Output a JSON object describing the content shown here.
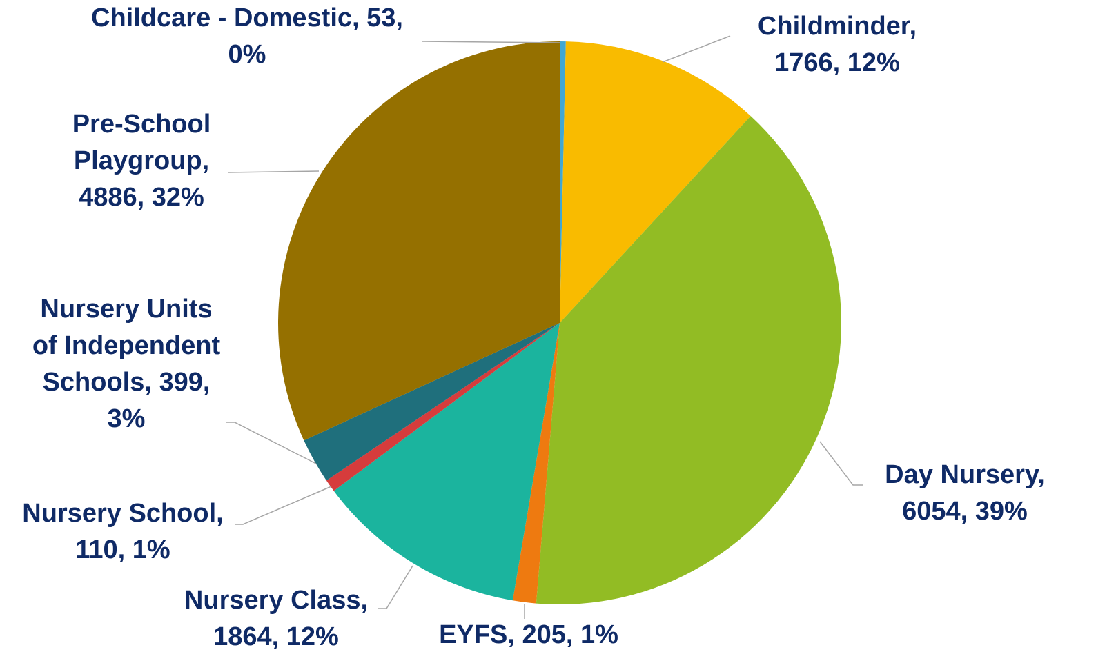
{
  "chart_data": {
    "type": "pie",
    "categories": [
      "Childcare - Domestic",
      "Childminder",
      "Day Nursery",
      "EYFS",
      "Nursery Class",
      "Nursery School",
      "Nursery Units of Independent Schools",
      "Pre-School Playgroup"
    ],
    "values": [
      53,
      1766,
      6054,
      205,
      1864,
      110,
      399,
      4886
    ],
    "value_labels": [
      [
        "Childcare - Domestic, 53,",
        "0%"
      ],
      [
        "Childminder,",
        "1766, 12%"
      ],
      [
        "Day Nursery,",
        "6054, 39%"
      ],
      [
        "EYFS, 205, 1%"
      ],
      [
        "Nursery Class,",
        "1864, 12%"
      ],
      [
        "Nursery School,",
        "110, 1%"
      ],
      [
        "Nursery Units",
        "of Independent",
        "Schools, 399,",
        "3%"
      ],
      [
        "Pre-School",
        "Playgroup,",
        "4886, 32%"
      ]
    ],
    "colors": [
      "#41a7d4",
      "#f9bb00",
      "#92bc24",
      "#ee7a10",
      "#1bb49e",
      "#d63c3c",
      "#1f6f7c",
      "#957000"
    ]
  }
}
